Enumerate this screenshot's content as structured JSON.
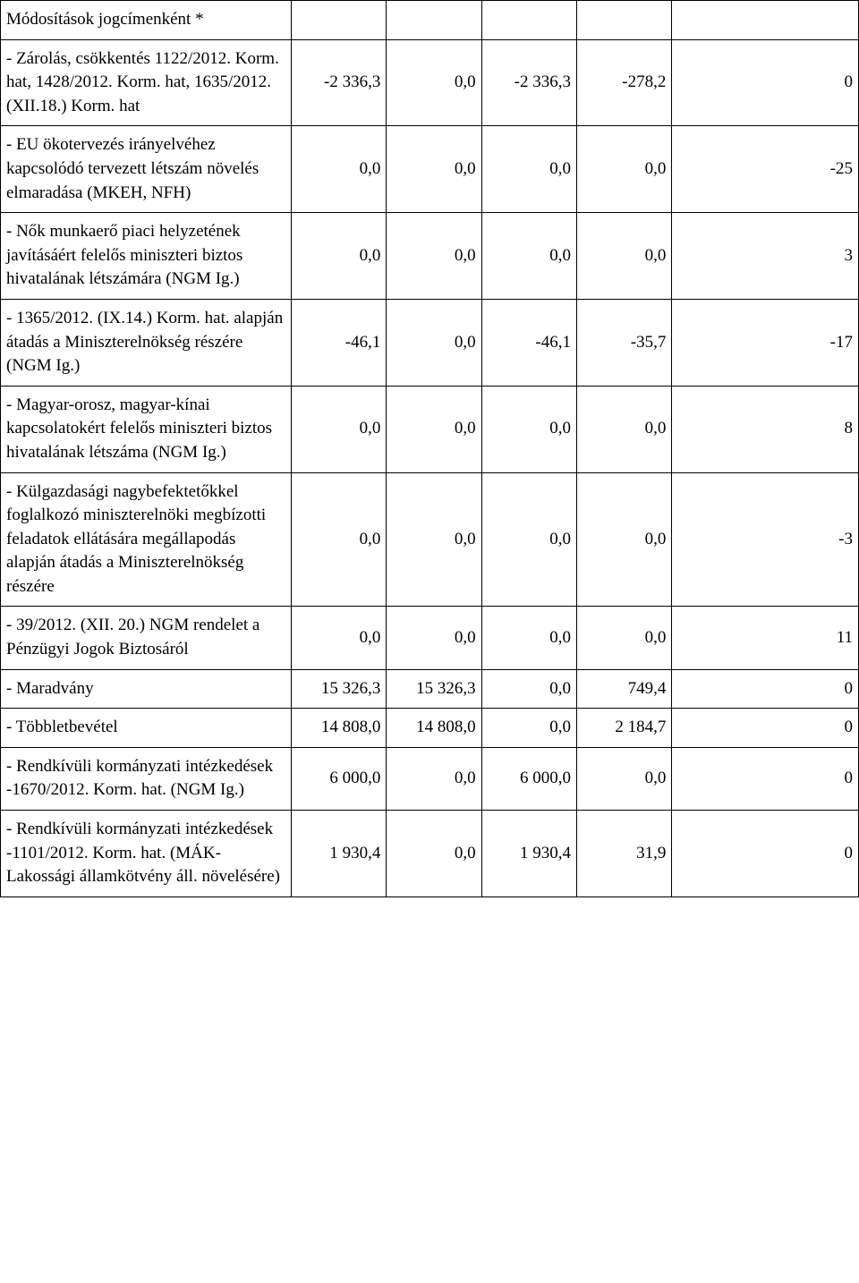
{
  "rows": [
    {
      "label": "Módosítások jogcímenként *",
      "cells": [
        "",
        "",
        "",
        "",
        ""
      ]
    },
    {
      "label": " - Zárolás, csökkentés 1122/2012. Korm. hat, 1428/2012. Korm. hat, 1635/2012. (XII.18.) Korm. hat",
      "cells": [
        "-2 336,3",
        "0,0",
        "-2 336,3",
        "-278,2",
        "0"
      ]
    },
    {
      "label": " - EU ökotervezés irányelvéhez kapcsolódó tervezett létszám növelés elmaradása (MKEH, NFH)",
      "cells": [
        "0,0",
        "0,0",
        "0,0",
        "0,0",
        "-25"
      ]
    },
    {
      "label": " - Nők munkaerő piaci helyzetének javításáért felelős miniszteri biztos hivatalának létszámára (NGM Ig.)",
      "cells": [
        "0,0",
        "0,0",
        "0,0",
        "0,0",
        "3"
      ]
    },
    {
      "label": " - 1365/2012. (IX.14.) Korm. hat. alapján átadás a Miniszterelnökség részére (NGM Ig.)",
      "cells": [
        "-46,1",
        "0,0",
        "-46,1",
        "-35,7",
        "-17"
      ]
    },
    {
      "label": " - Magyar-orosz, magyar-kínai kapcsolatokért felelős miniszteri biztos hivatalának létszáma (NGM Ig.)",
      "cells": [
        "0,0",
        "0,0",
        "0,0",
        "0,0",
        "8"
      ]
    },
    {
      "label": " - Külgazdasági nagybefektetőkkel foglalkozó miniszterelnöki megbízotti feladatok ellátására megállapodás alapján átadás a Miniszterelnökség részére",
      "cells": [
        "0,0",
        "0,0",
        "0,0",
        "0,0",
        "-3"
      ]
    },
    {
      "label": " - 39/2012. (XII. 20.) NGM rendelet a Pénzügyi Jogok Biztosáról",
      "cells": [
        "0,0",
        "0,0",
        "0,0",
        "0,0",
        "11"
      ]
    },
    {
      "label": " - Maradvány",
      "cells": [
        "15 326,3",
        "15 326,3",
        "0,0",
        "749,4",
        "0"
      ]
    },
    {
      "label": " - Többletbevétel",
      "cells": [
        "14 808,0",
        "14 808,0",
        "0,0",
        "2 184,7",
        "0"
      ]
    },
    {
      "label": " - Rendkívüli kormányzati intézkedések -1670/2012. Korm. hat. (NGM Ig.)",
      "cells": [
        "6 000,0",
        "0,0",
        "6 000,0",
        "0,0",
        "0"
      ]
    },
    {
      "label": " - Rendkívüli kormányzati intézkedések -1101/2012. Korm. hat. (MÁK-Lakossági államkötvény áll. növelésére)",
      "cells": [
        "1 930,4",
        "0,0",
        "1 930,4",
        "31,9",
        "0"
      ]
    }
  ]
}
